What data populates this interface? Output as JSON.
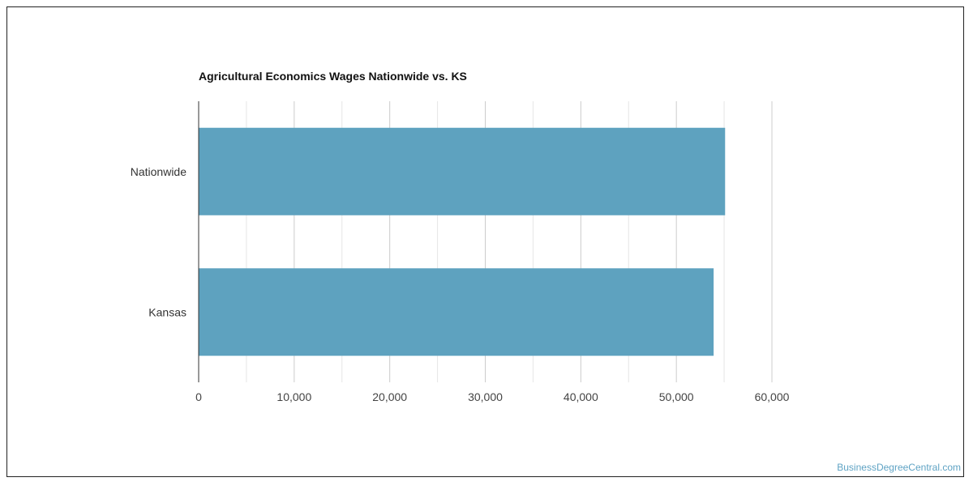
{
  "chart_data": {
    "type": "bar",
    "orientation": "horizontal",
    "title": "Agricultural Economics Wages Nationwide vs. KS",
    "categories": [
      "Nationwide",
      "Kansas"
    ],
    "values": [
      55100,
      53900
    ],
    "xlim": [
      0,
      60000
    ],
    "ticks": [
      "0",
      "10,000",
      "20,000",
      "30,000",
      "40,000",
      "50,000",
      "60,000"
    ],
    "tick_values": [
      0,
      10000,
      20000,
      30000,
      40000,
      50000,
      60000
    ],
    "grid": true,
    "bar_color": "#5ea2bf",
    "xlabel": "",
    "ylabel": ""
  },
  "watermark": "BusinessDegreeCentral.com"
}
